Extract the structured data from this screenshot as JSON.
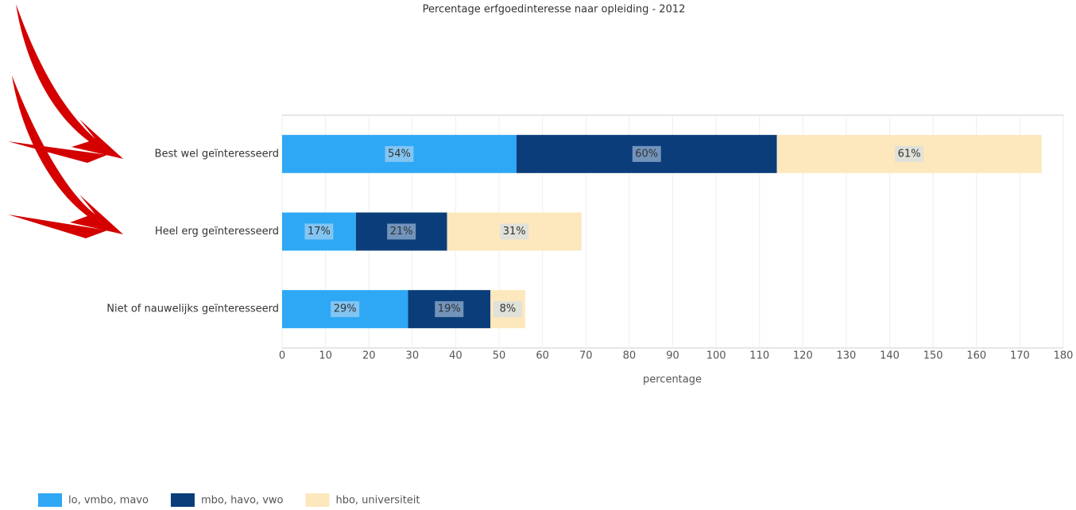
{
  "chart_data": {
    "type": "stacked-bar-horizontal",
    "title": "Percentage erfgoedinteresse naar opleiding - 2012",
    "categories": [
      "Best wel geïnteresseerd",
      "Heel erg geïnteresseerd",
      "Niet of nauwelijks geïnteresseerd"
    ],
    "series": [
      {
        "name": "lo, vmbo, mavo",
        "color": "#2ea8f5",
        "values": [
          54,
          17,
          29
        ],
        "value_labels": [
          "54%",
          "17%",
          "29%"
        ]
      },
      {
        "name": "mbo, havo, vwo",
        "color": "#0b3d7a",
        "values": [
          60,
          21,
          19
        ],
        "value_labels": [
          "60%",
          "21%",
          "19%"
        ]
      },
      {
        "name": "hbo, universiteit",
        "color": "#fde7bd",
        "values": [
          61,
          31,
          8
        ],
        "value_labels": [
          "61%",
          "31%",
          "8%"
        ]
      }
    ],
    "xlim": [
      0,
      180
    ],
    "xticks": [
      0,
      10,
      20,
      30,
      40,
      50,
      60,
      70,
      80,
      90,
      100,
      110,
      120,
      130,
      140,
      150,
      160,
      170,
      180
    ],
    "xlabel": "percentage",
    "grid": true
  }
}
